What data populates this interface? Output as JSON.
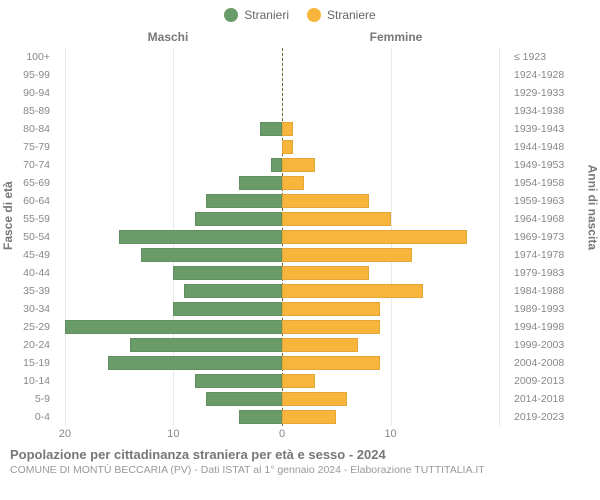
{
  "legend": {
    "male": {
      "label": "Stranieri",
      "color": "#6a9c69"
    },
    "female": {
      "label": "Straniere",
      "color": "#f7b53c"
    }
  },
  "axes": {
    "left_title": "Fasce di età",
    "right_title": "Anni di nascita",
    "top_left": "Maschi",
    "top_right": "Femmine",
    "x_max": 21,
    "x_ticks_left": [
      20,
      10,
      0
    ],
    "x_ticks_right": [
      10
    ]
  },
  "colors": {
    "background": "#ffffff",
    "grid": "#e9e9e9",
    "zero_line": "#6b6b3a",
    "text": "#666666"
  },
  "fonts": {
    "family": "Arial, Helvetica, sans-serif",
    "axis_label_pt": 10.5,
    "title_pt": 13
  },
  "rows": [
    {
      "age": "100+",
      "year": "≤ 1923",
      "m": 0,
      "f": 0
    },
    {
      "age": "95-99",
      "year": "1924-1928",
      "m": 0,
      "f": 0
    },
    {
      "age": "90-94",
      "year": "1929-1933",
      "m": 0,
      "f": 0
    },
    {
      "age": "85-89",
      "year": "1934-1938",
      "m": 0,
      "f": 0
    },
    {
      "age": "80-84",
      "year": "1939-1943",
      "m": 2,
      "f": 1
    },
    {
      "age": "75-79",
      "year": "1944-1948",
      "m": 0,
      "f": 1
    },
    {
      "age": "70-74",
      "year": "1949-1953",
      "m": 1,
      "f": 3
    },
    {
      "age": "65-69",
      "year": "1954-1958",
      "m": 4,
      "f": 2
    },
    {
      "age": "60-64",
      "year": "1959-1963",
      "m": 7,
      "f": 8
    },
    {
      "age": "55-59",
      "year": "1964-1968",
      "m": 8,
      "f": 10
    },
    {
      "age": "50-54",
      "year": "1969-1973",
      "m": 15,
      "f": 17
    },
    {
      "age": "45-49",
      "year": "1974-1978",
      "m": 13,
      "f": 12
    },
    {
      "age": "40-44",
      "year": "1979-1983",
      "m": 10,
      "f": 8
    },
    {
      "age": "35-39",
      "year": "1984-1988",
      "m": 9,
      "f": 13
    },
    {
      "age": "30-34",
      "year": "1989-1993",
      "m": 10,
      "f": 9
    },
    {
      "age": "25-29",
      "year": "1994-1998",
      "m": 20,
      "f": 9
    },
    {
      "age": "20-24",
      "year": "1999-2003",
      "m": 14,
      "f": 7
    },
    {
      "age": "15-19",
      "year": "2004-2008",
      "m": 16,
      "f": 9
    },
    {
      "age": "10-14",
      "year": "2009-2013",
      "m": 8,
      "f": 3
    },
    {
      "age": "5-9",
      "year": "2014-2018",
      "m": 7,
      "f": 6
    },
    {
      "age": "0-4",
      "year": "2019-2023",
      "m": 4,
      "f": 5
    }
  ],
  "footer": {
    "title": "Popolazione per cittadinanza straniera per età e sesso - 2024",
    "subtitle": "COMUNE DI MONTÙ BECCARIA (PV) - Dati ISTAT al 1° gennaio 2024 - Elaborazione TUTTITALIA.IT"
  }
}
